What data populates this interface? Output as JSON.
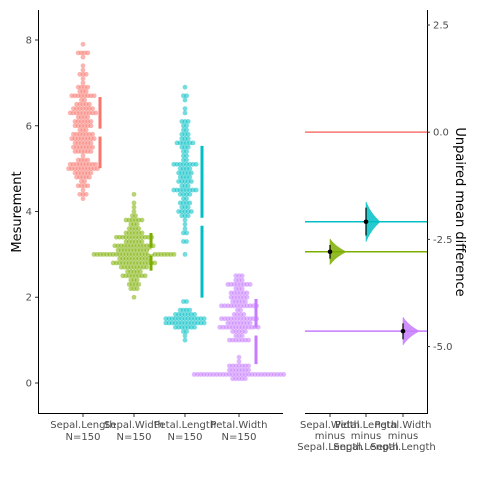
{
  "chart_data": [
    {
      "type": "scatter",
      "subtype": "swarm-with-group-summary",
      "ylabel": "Mesurement",
      "ylim": [
        -0.7,
        8.7
      ],
      "yticks": [
        0,
        2,
        4,
        6,
        8
      ],
      "categories": [
        {
          "name": "Sepal.Length",
          "n_label": "N=150"
        },
        {
          "name": "Sepal.Width",
          "n_label": "N=150"
        },
        {
          "name": "Petal.Length",
          "n_label": "N=150"
        },
        {
          "name": "Petal.Width",
          "n_label": "N=150"
        }
      ],
      "series": [
        {
          "name": "Sepal.Length",
          "color": "#f8766d",
          "mean": 5.84,
          "sd": 0.83,
          "min": 4.3,
          "max": 7.9,
          "distribution": [
            [
              4.3,
              1
            ],
            [
              4.4,
              3
            ],
            [
              4.5,
              1
            ],
            [
              4.6,
              4
            ],
            [
              4.7,
              2
            ],
            [
              4.8,
              5
            ],
            [
              4.9,
              6
            ],
            [
              5.0,
              10
            ],
            [
              5.1,
              9
            ],
            [
              5.2,
              4
            ],
            [
              5.3,
              1
            ],
            [
              5.4,
              6
            ],
            [
              5.5,
              7
            ],
            [
              5.6,
              6
            ],
            [
              5.7,
              8
            ],
            [
              5.8,
              7
            ],
            [
              5.9,
              3
            ],
            [
              6.0,
              6
            ],
            [
              6.1,
              6
            ],
            [
              6.2,
              4
            ],
            [
              6.3,
              9
            ],
            [
              6.4,
              7
            ],
            [
              6.5,
              5
            ],
            [
              6.6,
              2
            ],
            [
              6.7,
              8
            ],
            [
              6.8,
              3
            ],
            [
              6.9,
              4
            ],
            [
              7.0,
              1
            ],
            [
              7.1,
              1
            ],
            [
              7.2,
              3
            ],
            [
              7.3,
              1
            ],
            [
              7.4,
              1
            ],
            [
              7.6,
              1
            ],
            [
              7.7,
              4
            ],
            [
              7.9,
              1
            ]
          ]
        },
        {
          "name": "Sepal.Width",
          "color": "#7cae00",
          "mean": 3.06,
          "sd": 0.44,
          "min": 2.0,
          "max": 4.4,
          "distribution": [
            [
              2.0,
              1
            ],
            [
              2.2,
              3
            ],
            [
              2.3,
              4
            ],
            [
              2.4,
              3
            ],
            [
              2.5,
              8
            ],
            [
              2.6,
              5
            ],
            [
              2.7,
              9
            ],
            [
              2.8,
              14
            ],
            [
              2.9,
              10
            ],
            [
              3.0,
              26
            ],
            [
              3.1,
              11
            ],
            [
              3.2,
              13
            ],
            [
              3.3,
              6
            ],
            [
              3.4,
              12
            ],
            [
              3.5,
              6
            ],
            [
              3.6,
              4
            ],
            [
              3.7,
              3
            ],
            [
              3.8,
              6
            ],
            [
              3.9,
              2
            ],
            [
              4.0,
              1
            ],
            [
              4.1,
              1
            ],
            [
              4.2,
              1
            ],
            [
              4.4,
              1
            ]
          ]
        },
        {
          "name": "Petal.Length",
          "color": "#00bfc4",
          "mean": 3.76,
          "sd": 1.77,
          "min": 1.0,
          "max": 6.9,
          "distribution": [
            [
              1.0,
              1
            ],
            [
              1.1,
              1
            ],
            [
              1.2,
              2
            ],
            [
              1.3,
              7
            ],
            [
              1.4,
              13
            ],
            [
              1.5,
              13
            ],
            [
              1.6,
              7
            ],
            [
              1.7,
              4
            ],
            [
              1.9,
              2
            ],
            [
              3.0,
              1
            ],
            [
              3.3,
              2
            ],
            [
              3.5,
              2
            ],
            [
              3.6,
              1
            ],
            [
              3.7,
              1
            ],
            [
              3.8,
              1
            ],
            [
              3.9,
              3
            ],
            [
              4.0,
              5
            ],
            [
              4.1,
              3
            ],
            [
              4.2,
              4
            ],
            [
              4.3,
              2
            ],
            [
              4.4,
              4
            ],
            [
              4.5,
              8
            ],
            [
              4.6,
              3
            ],
            [
              4.7,
              5
            ],
            [
              4.8,
              4
            ],
            [
              4.9,
              5
            ],
            [
              5.0,
              4
            ],
            [
              5.1,
              8
            ],
            [
              5.2,
              2
            ],
            [
              5.3,
              2
            ],
            [
              5.4,
              2
            ],
            [
              5.5,
              3
            ],
            [
              5.6,
              6
            ],
            [
              5.7,
              3
            ],
            [
              5.8,
              3
            ],
            [
              5.9,
              2
            ],
            [
              6.0,
              2
            ],
            [
              6.1,
              3
            ],
            [
              6.3,
              1
            ],
            [
              6.4,
              1
            ],
            [
              6.6,
              1
            ],
            [
              6.7,
              2
            ],
            [
              6.9,
              1
            ]
          ]
        },
        {
          "name": "Petal.Width",
          "color": "#c77cff",
          "mean": 1.2,
          "sd": 0.76,
          "min": 0.1,
          "max": 2.5,
          "distribution": [
            [
              0.1,
              5
            ],
            [
              0.2,
              29
            ],
            [
              0.3,
              7
            ],
            [
              0.4,
              7
            ],
            [
              0.5,
              1
            ],
            [
              0.6,
              1
            ],
            [
              1.0,
              7
            ],
            [
              1.1,
              3
            ],
            [
              1.2,
              5
            ],
            [
              1.3,
              13
            ],
            [
              1.4,
              8
            ],
            [
              1.5,
              12
            ],
            [
              1.6,
              4
            ],
            [
              1.7,
              2
            ],
            [
              1.8,
              12
            ],
            [
              1.9,
              5
            ],
            [
              2.0,
              6
            ],
            [
              2.1,
              6
            ],
            [
              2.2,
              3
            ],
            [
              2.3,
              8
            ],
            [
              2.4,
              3
            ],
            [
              2.5,
              3
            ]
          ]
        }
      ]
    },
    {
      "type": "scatter",
      "subtype": "mean-difference-estimation",
      "ylabel": "Unpaired mean difference",
      "ylim": [
        -6.55,
        2.85
      ],
      "yticks": [
        2.5,
        0.0,
        -2.5,
        -5.0
      ],
      "ytick_labels": [
        "2.5",
        "0.0",
        "-2.5",
        "-5.0"
      ],
      "reference": {
        "name": "Sepal.Length",
        "color": "#f8766d",
        "value": 0.0
      },
      "comparisons": [
        {
          "label_lines": [
            "Sepal.Width",
            "minus",
            "Sepal.Length"
          ],
          "color": "#7cae00",
          "difference": -2.79,
          "ci": [
            -2.95,
            -2.63
          ],
          "reference_line": -2.79
        },
        {
          "label_lines": [
            "Petal.Length",
            "minus",
            "Sepal.Length"
          ],
          "color": "#00bfc4",
          "difference": -2.09,
          "ci": [
            -2.41,
            -1.76
          ],
          "reference_line": -2.09
        },
        {
          "label_lines": [
            "Petal.Width",
            "minus",
            "Sepal.Length"
          ],
          "color": "#c77cff",
          "difference": -4.64,
          "ci": [
            -4.83,
            -4.46
          ],
          "reference_line": -4.64
        }
      ]
    }
  ]
}
